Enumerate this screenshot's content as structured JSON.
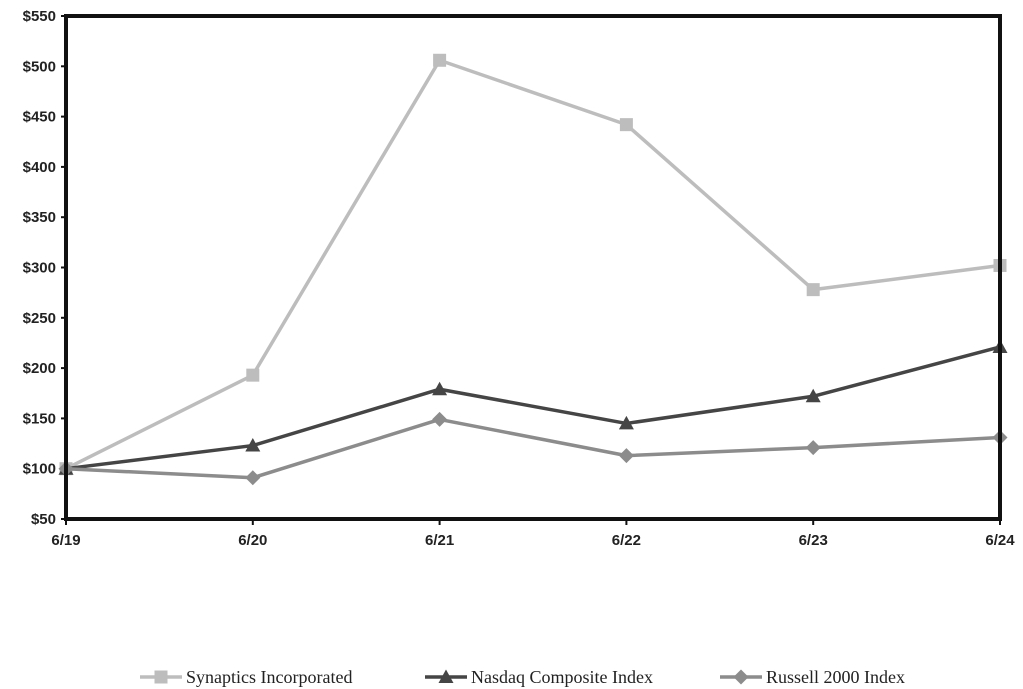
{
  "chart_data": {
    "type": "line",
    "title": "",
    "xlabel": "",
    "ylabel": "",
    "categories": [
      "6/19",
      "6/20",
      "6/21",
      "6/22",
      "6/23",
      "6/24"
    ],
    "y_ticks": [
      "$50",
      "$100",
      "$150",
      "$200",
      "$250",
      "$300",
      "$350",
      "$400",
      "$450",
      "$500",
      "$550"
    ],
    "ylim": [
      50,
      550
    ],
    "grid": false,
    "legend_position": "bottom",
    "series": [
      {
        "name": "Synaptics Incorporated",
        "values": [
          100,
          193,
          506,
          442,
          278,
          302
        ],
        "color": "#bdbdbd",
        "marker": "square"
      },
      {
        "name": "Nasdaq Composite Index",
        "values": [
          100,
          123,
          179,
          145,
          172,
          221
        ],
        "color": "#454545",
        "marker": "triangle"
      },
      {
        "name": "Russell 2000 Index",
        "values": [
          100,
          91,
          149,
          113,
          121,
          131
        ],
        "color": "#8c8c8c",
        "marker": "diamond"
      }
    ]
  }
}
